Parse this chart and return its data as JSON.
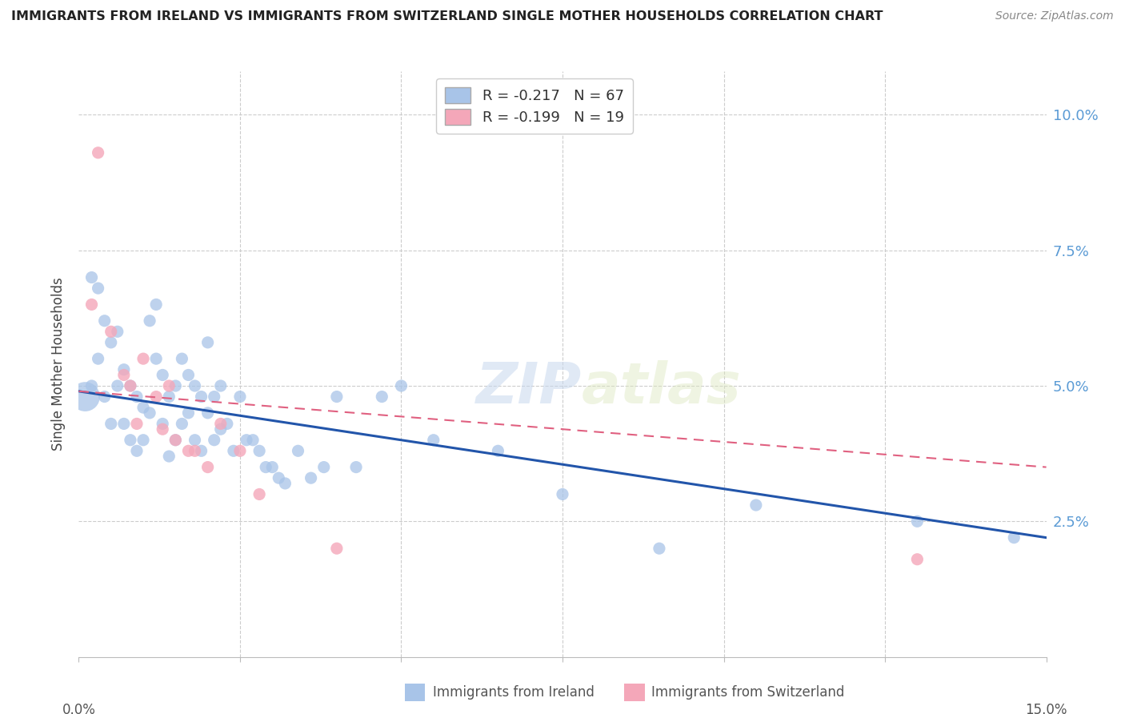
{
  "title": "IMMIGRANTS FROM IRELAND VS IMMIGRANTS FROM SWITZERLAND SINGLE MOTHER HOUSEHOLDS CORRELATION CHART",
  "source": "Source: ZipAtlas.com",
  "ylabel": "Single Mother Households",
  "ytick_values": [
    0.025,
    0.05,
    0.075,
    0.1
  ],
  "ytick_labels": [
    "2.5%",
    "5.0%",
    "7.5%",
    "10.0%"
  ],
  "xlim": [
    0.0,
    0.15
  ],
  "ylim": [
    0.0,
    0.108
  ],
  "legend_ireland": "R = -0.217   N = 67",
  "legend_switzerland": "R = -0.199   N = 19",
  "legend_label_ireland": "Immigrants from Ireland",
  "legend_label_switzerland": "Immigrants from Switzerland",
  "color_ireland": "#a8c4e8",
  "color_switzerland": "#f4a7b9",
  "color_ireland_line": "#2255aa",
  "color_switzerland_line": "#e06080",
  "watermark_zip": "ZIP",
  "watermark_atlas": "atlas",
  "ireland_scatter_x": [
    0.001,
    0.002,
    0.002,
    0.003,
    0.003,
    0.004,
    0.004,
    0.005,
    0.005,
    0.006,
    0.006,
    0.007,
    0.007,
    0.008,
    0.008,
    0.009,
    0.009,
    0.01,
    0.01,
    0.011,
    0.011,
    0.012,
    0.012,
    0.013,
    0.013,
    0.014,
    0.014,
    0.015,
    0.015,
    0.016,
    0.016,
    0.017,
    0.017,
    0.018,
    0.018,
    0.019,
    0.019,
    0.02,
    0.02,
    0.021,
    0.021,
    0.022,
    0.022,
    0.023,
    0.024,
    0.025,
    0.026,
    0.027,
    0.028,
    0.029,
    0.03,
    0.031,
    0.032,
    0.034,
    0.036,
    0.038,
    0.04,
    0.043,
    0.047,
    0.05,
    0.055,
    0.065,
    0.075,
    0.09,
    0.105,
    0.13,
    0.145
  ],
  "ireland_scatter_y": [
    0.048,
    0.07,
    0.05,
    0.068,
    0.055,
    0.062,
    0.048,
    0.058,
    0.043,
    0.06,
    0.05,
    0.053,
    0.043,
    0.05,
    0.04,
    0.048,
    0.038,
    0.046,
    0.04,
    0.062,
    0.045,
    0.065,
    0.055,
    0.052,
    0.043,
    0.048,
    0.037,
    0.05,
    0.04,
    0.055,
    0.043,
    0.052,
    0.045,
    0.05,
    0.04,
    0.048,
    0.038,
    0.058,
    0.045,
    0.048,
    0.04,
    0.05,
    0.042,
    0.043,
    0.038,
    0.048,
    0.04,
    0.04,
    0.038,
    0.035,
    0.035,
    0.033,
    0.032,
    0.038,
    0.033,
    0.035,
    0.048,
    0.035,
    0.048,
    0.05,
    0.04,
    0.038,
    0.03,
    0.02,
    0.028,
    0.025,
    0.022
  ],
  "ireland_scatter_size": [
    700,
    120,
    120,
    120,
    120,
    120,
    120,
    120,
    120,
    120,
    120,
    120,
    120,
    120,
    120,
    120,
    120,
    120,
    120,
    120,
    120,
    120,
    120,
    120,
    120,
    120,
    120,
    120,
    120,
    120,
    120,
    120,
    120,
    120,
    120,
    120,
    120,
    120,
    120,
    120,
    120,
    120,
    120,
    120,
    120,
    120,
    120,
    120,
    120,
    120,
    120,
    120,
    120,
    120,
    120,
    120,
    120,
    120,
    120,
    120,
    120,
    120,
    120,
    120,
    120,
    120,
    120
  ],
  "switzerland_scatter_x": [
    0.002,
    0.003,
    0.005,
    0.007,
    0.008,
    0.009,
    0.01,
    0.012,
    0.013,
    0.014,
    0.015,
    0.017,
    0.018,
    0.02,
    0.022,
    0.025,
    0.028,
    0.04,
    0.13
  ],
  "switzerland_scatter_y": [
    0.065,
    0.093,
    0.06,
    0.052,
    0.05,
    0.043,
    0.055,
    0.048,
    0.042,
    0.05,
    0.04,
    0.038,
    0.038,
    0.035,
    0.043,
    0.038,
    0.03,
    0.02,
    0.018
  ],
  "switzerland_scatter_size": [
    120,
    120,
    120,
    120,
    120,
    120,
    120,
    120,
    120,
    120,
    120,
    120,
    120,
    120,
    120,
    120,
    120,
    120,
    120
  ],
  "ireland_line_x": [
    0.0,
    0.15
  ],
  "ireland_line_y": [
    0.049,
    0.022
  ],
  "switzerland_line_x": [
    0.0,
    0.15
  ],
  "switzerland_line_y": [
    0.049,
    0.035
  ]
}
